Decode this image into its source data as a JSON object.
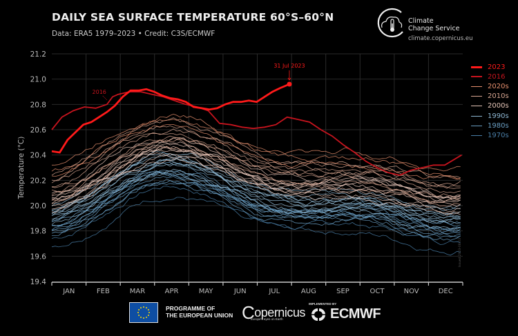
{
  "header": {
    "title": "DAILY SEA SURFACE TEMPERATURE 60°S–60°N",
    "subtitle": "Data: ERA5 1979–2023 • Credit: C3S/ECMWF"
  },
  "logo": {
    "line1": "Climate",
    "line2": "Change Service",
    "url": "climate.copernicus.eu",
    "icon": "thermometer-cloud-icon"
  },
  "footer": {
    "eu_line1": "PROGRAMME OF",
    "eu_line2": "THE EUROPEAN UNION",
    "copernicus": "opernicus",
    "copernicus_c": "C",
    "copernicus_tag": "Europe's eyes on Earth",
    "implemented_by": "IMPLEMENTED BY",
    "ecmwf": "ECMWF"
  },
  "watermark": "Issued 2023-08-03",
  "colors": {
    "y2023": "#ff1a1a",
    "y2016": "#c8141e",
    "d2020s": "#e8906e",
    "d2010s": "#d9a792",
    "d2000s": "#e6c6b8",
    "d1990s": "#8fb8d4",
    "d1980s": "#6a9fc4",
    "d1970s": "#4a7fa8"
  },
  "chart_data": {
    "type": "line",
    "title": "DAILY SEA SURFACE TEMPERATURE 60°S–60°N",
    "xlabel": "",
    "ylabel": "Temperature (°C)",
    "ylim": [
      19.4,
      21.2
    ],
    "yticks": [
      "19.4",
      "19.6",
      "19.8",
      "20.0",
      "20.2",
      "20.4",
      "20.6",
      "20.8",
      "21.0",
      "21.2"
    ],
    "categories": [
      "JAN",
      "FEB",
      "MAR",
      "APR",
      "MAY",
      "JUN",
      "JUL",
      "AUG",
      "SEP",
      "OCT",
      "NOV",
      "DEC"
    ],
    "grid": true,
    "legend_position": "right",
    "legend": [
      {
        "label": "2023",
        "color": "#ff1a1a"
      },
      {
        "label": "2016",
        "color": "#c8141e"
      },
      {
        "label": "2020s",
        "color": "#e8906e"
      },
      {
        "label": "2010s",
        "color": "#d9a792"
      },
      {
        "label": "2000s",
        "color": "#e6c6b8"
      },
      {
        "label": "1990s",
        "color": "#8fb8d4"
      },
      {
        "label": "1980s",
        "color": "#6a9fc4"
      },
      {
        "label": "1970s",
        "color": "#4a7fa8"
      }
    ],
    "annotations": [
      {
        "text": "31 Jul 2023",
        "day": 212,
        "value": 20.96
      },
      {
        "text": "2016",
        "day": 45,
        "value": 20.83
      }
    ],
    "series": [
      {
        "name": "2023",
        "emphasis": true,
        "days": [
          1,
          8,
          15,
          22,
          29,
          36,
          43,
          50,
          57,
          64,
          71,
          78,
          85,
          92,
          99,
          106,
          113,
          120,
          127,
          134,
          141,
          148,
          155,
          162,
          169,
          176,
          183,
          190,
          197,
          204,
          212
        ],
        "values": [
          20.43,
          20.42,
          20.52,
          20.58,
          20.64,
          20.66,
          20.7,
          20.74,
          20.79,
          20.86,
          20.91,
          20.91,
          20.92,
          20.9,
          20.87,
          20.85,
          20.84,
          20.82,
          20.78,
          20.77,
          20.76,
          20.77,
          20.8,
          20.82,
          20.82,
          20.83,
          20.82,
          20.86,
          20.9,
          20.93,
          20.96
        ]
      },
      {
        "name": "2016",
        "emphasis": true,
        "days": [
          1,
          10,
          20,
          30,
          40,
          50,
          55,
          60,
          70,
          80,
          90,
          100,
          110,
          120,
          130,
          140,
          150,
          160,
          170,
          180,
          190,
          200,
          210,
          220,
          230,
          240,
          250,
          260,
          270,
          280,
          290,
          300,
          310,
          320,
          330,
          340,
          350,
          365
        ],
        "values": [
          20.6,
          20.7,
          20.75,
          20.78,
          20.77,
          20.8,
          20.86,
          20.88,
          20.9,
          20.9,
          20.88,
          20.86,
          20.83,
          20.8,
          20.78,
          20.75,
          20.65,
          20.64,
          20.62,
          20.61,
          20.62,
          20.64,
          20.7,
          20.68,
          20.66,
          20.6,
          20.55,
          20.48,
          20.42,
          20.35,
          20.3,
          20.26,
          20.24,
          20.28,
          20.3,
          20.32,
          20.32,
          20.4
        ]
      }
    ]
  },
  "decades": [
    {
      "name": "2020s",
      "color": "#e8906e",
      "offsets": [
        0.22,
        0.28,
        0.18
      ]
    },
    {
      "name": "2010s",
      "color": "#d9a792",
      "offsets": [
        0.1,
        0.15,
        0.05,
        0.2,
        0.12,
        0.0,
        0.08,
        0.17
      ]
    },
    {
      "name": "2000s",
      "color": "#e6c6b8",
      "offsets": [
        -0.02,
        0.04,
        -0.06,
        0.0,
        0.06,
        -0.04,
        0.02,
        -0.08,
        0.03,
        -0.01
      ]
    },
    {
      "name": "1990s",
      "color": "#8fb8d4",
      "offsets": [
        -0.12,
        -0.08,
        -0.15,
        -0.1,
        -0.05,
        -0.14,
        -0.09,
        -0.18,
        -0.11,
        -0.13
      ]
    },
    {
      "name": "1980s",
      "color": "#6a9fc4",
      "offsets": [
        -0.2,
        -0.22,
        -0.17,
        -0.25,
        -0.19,
        -0.24,
        -0.21,
        -0.16,
        -0.27,
        -0.23
      ]
    },
    {
      "name": "1970s",
      "color": "#4a7fa8",
      "offsets": [
        -0.3,
        -0.36
      ]
    }
  ]
}
